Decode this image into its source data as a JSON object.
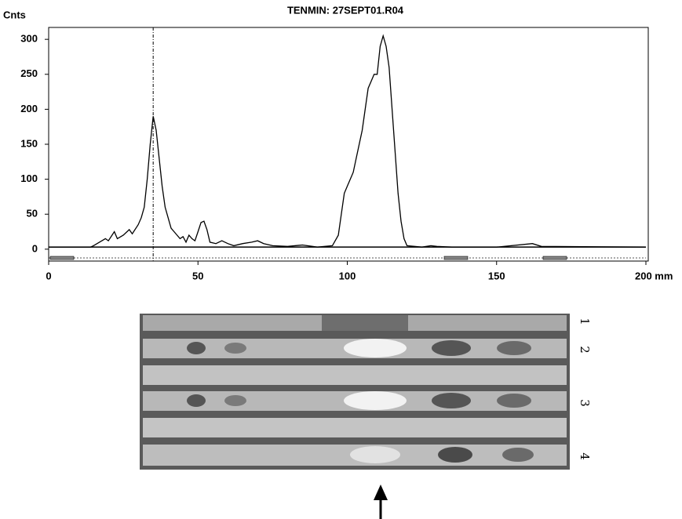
{
  "chart_data": {
    "type": "line",
    "title": "TENMIN: 27SEPT01.R04",
    "y_label": "Cnts",
    "x": [
      0,
      14,
      15,
      17,
      19,
      20,
      22,
      23,
      25,
      27,
      28,
      30,
      31,
      32,
      33,
      34,
      35,
      36,
      37,
      38,
      39,
      40,
      41,
      42,
      44,
      45,
      46,
      47,
      48,
      49,
      50,
      51,
      52,
      53,
      54,
      56,
      58,
      60,
      62,
      65,
      68,
      70,
      72,
      75,
      80,
      85,
      90,
      95,
      97,
      98,
      99,
      100,
      101,
      102,
      103,
      104,
      105,
      106,
      107,
      108,
      109,
      110,
      111,
      112,
      113,
      114,
      115,
      116,
      117,
      118,
      119,
      120,
      125,
      128,
      130,
      135,
      150,
      162,
      165,
      200
    ],
    "values": [
      3,
      3,
      5,
      10,
      15,
      12,
      25,
      15,
      20,
      28,
      22,
      35,
      45,
      60,
      100,
      150,
      190,
      170,
      130,
      90,
      60,
      45,
      30,
      25,
      15,
      18,
      10,
      20,
      15,
      12,
      25,
      38,
      40,
      28,
      10,
      8,
      12,
      8,
      5,
      8,
      10,
      12,
      8,
      5,
      4,
      6,
      3,
      5,
      20,
      50,
      80,
      90,
      100,
      110,
      130,
      150,
      170,
      200,
      230,
      240,
      250,
      250,
      290,
      305,
      290,
      260,
      200,
      140,
      80,
      40,
      15,
      5,
      3,
      5,
      4,
      3,
      3,
      8,
      4,
      3
    ],
    "color": "#000000",
    "xlim": [
      0,
      200
    ],
    "ylim": [
      -17,
      317
    ],
    "xticks": [
      0,
      50,
      100,
      150,
      {
        "value": 200,
        "label": "200 mm"
      }
    ],
    "yticks": [
      0,
      50,
      100,
      150,
      200,
      250,
      300
    ],
    "marker_x": 35
  },
  "plate_labels": [
    "1",
    "2",
    "3",
    "4"
  ]
}
